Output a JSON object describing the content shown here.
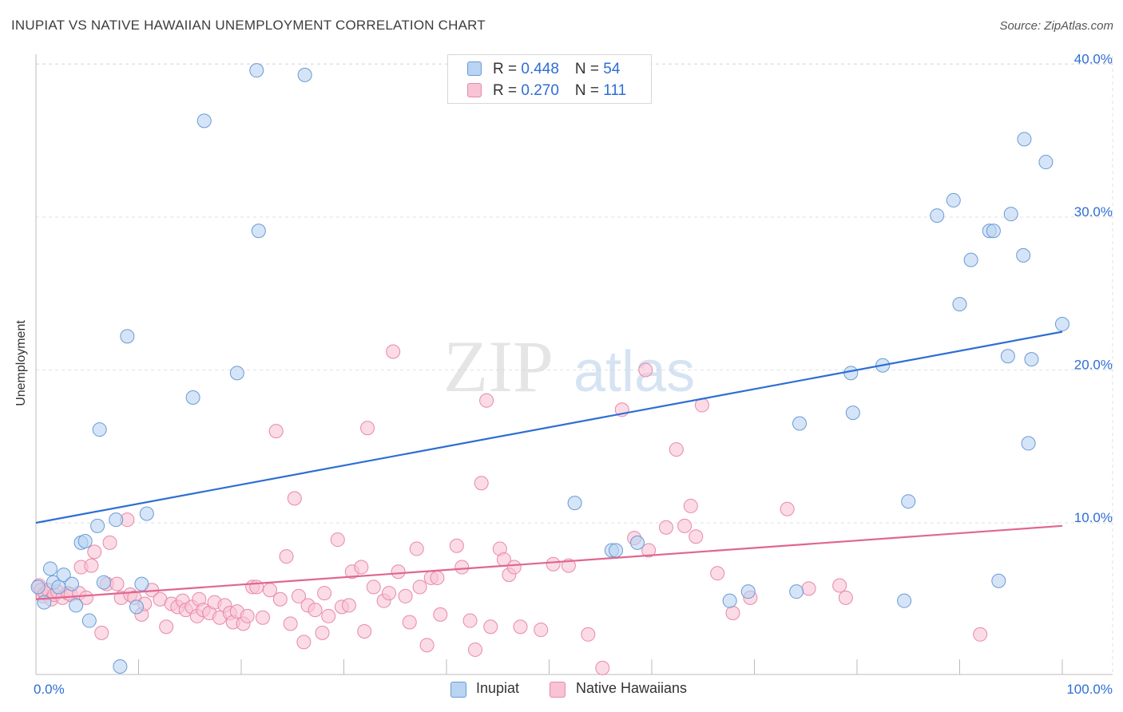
{
  "header": {
    "title": "INUPIAT VS NATIVE HAWAIIAN UNEMPLOYMENT CORRELATION CHART",
    "source": "Source: ZipAtlas.com"
  },
  "watermark": {
    "zip": "ZIP",
    "atlas": "atlas"
  },
  "legend": {
    "rows": [
      {
        "r_label": "R = ",
        "r_value": "0.448",
        "n_label": "N = ",
        "n_value": "54"
      },
      {
        "r_label": "R = ",
        "r_value": "0.270",
        "n_label": "N = ",
        "n_value": "111"
      }
    ],
    "bottom": [
      "Inupiat",
      "Native Hawaiians"
    ]
  },
  "colors": {
    "inupiat_fill": "#b9d3f2",
    "inupiat_stroke": "#6a9ad6",
    "inupiat_line": "#2d6ed4",
    "hawaiian_fill": "#f8c3d4",
    "hawaiian_stroke": "#e889a8",
    "hawaiian_line": "#e0668f",
    "tick_text": "#2d6ed4",
    "grid": "#e2e2e2"
  },
  "chart_data": {
    "type": "scatter",
    "title": "INUPIAT VS NATIVE HAWAIIAN UNEMPLOYMENT CORRELATION CHART",
    "xlabel": "",
    "ylabel": "Unemployment",
    "xlim": [
      0,
      100
    ],
    "ylim": [
      0,
      42
    ],
    "x_tick_labels": [
      "0.0%",
      "100.0%"
    ],
    "y_ticks": [
      10,
      20,
      30,
      40
    ],
    "y_tick_labels": [
      "10.0%",
      "20.0%",
      "30.0%",
      "40.0%"
    ],
    "grid": true,
    "legend_position": "top-center",
    "series": [
      {
        "name": "Inupiat",
        "r": 0.448,
        "n": 54,
        "trend": [
          [
            0,
            10.0
          ],
          [
            100,
            22.5
          ]
        ],
        "points": [
          [
            0.2,
            5.8
          ],
          [
            0.8,
            4.8
          ],
          [
            1.4,
            7.0
          ],
          [
            1.7,
            6.1
          ],
          [
            2.2,
            5.8
          ],
          [
            2.7,
            6.6
          ],
          [
            3.5,
            6.0
          ],
          [
            3.9,
            4.6
          ],
          [
            4.4,
            8.7
          ],
          [
            4.8,
            8.8
          ],
          [
            5.2,
            3.6
          ],
          [
            6.0,
            9.8
          ],
          [
            6.2,
            16.1
          ],
          [
            6.6,
            6.1
          ],
          [
            7.8,
            10.2
          ],
          [
            8.2,
            0.6
          ],
          [
            8.9,
            22.2
          ],
          [
            9.8,
            4.5
          ],
          [
            10.3,
            6.0
          ],
          [
            10.8,
            10.6
          ],
          [
            15.3,
            18.2
          ],
          [
            16.4,
            36.3
          ],
          [
            19.6,
            19.8
          ],
          [
            21.5,
            39.6
          ],
          [
            21.7,
            29.1
          ],
          [
            26.2,
            39.3
          ],
          [
            52.5,
            11.3
          ],
          [
            56.1,
            8.2
          ],
          [
            56.5,
            8.2
          ],
          [
            58.6,
            8.7
          ],
          [
            67.6,
            4.9
          ],
          [
            69.4,
            5.5
          ],
          [
            74.1,
            5.5
          ],
          [
            74.4,
            16.5
          ],
          [
            79.4,
            19.8
          ],
          [
            79.6,
            17.2
          ],
          [
            82.5,
            20.3
          ],
          [
            84.6,
            4.9
          ],
          [
            85.0,
            11.4
          ],
          [
            87.8,
            30.1
          ],
          [
            89.4,
            31.1
          ],
          [
            90.0,
            24.3
          ],
          [
            91.1,
            27.2
          ],
          [
            92.9,
            29.1
          ],
          [
            93.3,
            29.1
          ],
          [
            93.8,
            6.2
          ],
          [
            94.7,
            20.9
          ],
          [
            95.0,
            30.2
          ],
          [
            96.2,
            27.5
          ],
          [
            96.3,
            35.1
          ],
          [
            96.7,
            15.2
          ],
          [
            97.0,
            20.7
          ],
          [
            98.4,
            33.6
          ],
          [
            100.0,
            23.0
          ]
        ]
      },
      {
        "name": "Native Hawaiians",
        "r": 0.27,
        "n": 111,
        "trend": [
          [
            0,
            5.0
          ],
          [
            100,
            9.8
          ]
        ],
        "points": [
          [
            0.3,
            5.9
          ],
          [
            0.5,
            5.6
          ],
          [
            0.7,
            5.2
          ],
          [
            0.9,
            5.4
          ],
          [
            1.2,
            5.6
          ],
          [
            1.5,
            5.0
          ],
          [
            1.8,
            5.3
          ],
          [
            2.1,
            5.5
          ],
          [
            2.6,
            5.1
          ],
          [
            3.1,
            5.4
          ],
          [
            3.4,
            5.3
          ],
          [
            4.2,
            5.4
          ],
          [
            4.4,
            7.1
          ],
          [
            4.9,
            5.1
          ],
          [
            5.4,
            7.2
          ],
          [
            5.7,
            8.1
          ],
          [
            6.4,
            2.8
          ],
          [
            6.9,
            6.0
          ],
          [
            7.2,
            8.7
          ],
          [
            7.9,
            6.0
          ],
          [
            8.3,
            5.1
          ],
          [
            8.9,
            10.2
          ],
          [
            9.2,
            5.3
          ],
          [
            9.6,
            5.1
          ],
          [
            10.3,
            4.0
          ],
          [
            10.6,
            4.7
          ],
          [
            11.3,
            5.6
          ],
          [
            12.1,
            5.0
          ],
          [
            12.7,
            3.2
          ],
          [
            13.2,
            4.7
          ],
          [
            13.8,
            4.5
          ],
          [
            14.3,
            4.9
          ],
          [
            14.6,
            4.3
          ],
          [
            15.2,
            4.5
          ],
          [
            15.7,
            3.9
          ],
          [
            15.9,
            5.0
          ],
          [
            16.3,
            4.3
          ],
          [
            16.9,
            4.1
          ],
          [
            17.4,
            4.8
          ],
          [
            17.9,
            3.8
          ],
          [
            18.4,
            4.6
          ],
          [
            18.9,
            4.1
          ],
          [
            19.2,
            3.5
          ],
          [
            19.6,
            4.2
          ],
          [
            20.2,
            3.4
          ],
          [
            20.6,
            3.9
          ],
          [
            21.1,
            5.8
          ],
          [
            21.5,
            5.8
          ],
          [
            22.1,
            3.8
          ],
          [
            22.8,
            5.6
          ],
          [
            23.4,
            16.0
          ],
          [
            23.8,
            5.0
          ],
          [
            24.4,
            7.8
          ],
          [
            24.8,
            3.4
          ],
          [
            25.2,
            11.6
          ],
          [
            25.6,
            5.2
          ],
          [
            26.1,
            2.2
          ],
          [
            26.5,
            4.6
          ],
          [
            27.2,
            4.3
          ],
          [
            27.9,
            2.8
          ],
          [
            28.1,
            5.4
          ],
          [
            28.5,
            3.9
          ],
          [
            29.4,
            8.9
          ],
          [
            29.8,
            4.5
          ],
          [
            30.5,
            4.6
          ],
          [
            30.8,
            6.8
          ],
          [
            31.7,
            7.1
          ],
          [
            32.0,
            2.9
          ],
          [
            32.3,
            16.2
          ],
          [
            32.9,
            5.8
          ],
          [
            33.9,
            4.9
          ],
          [
            34.4,
            5.4
          ],
          [
            34.8,
            21.2
          ],
          [
            35.3,
            6.8
          ],
          [
            36.0,
            5.2
          ],
          [
            36.4,
            3.5
          ],
          [
            37.1,
            8.3
          ],
          [
            37.4,
            5.8
          ],
          [
            38.1,
            2.0
          ],
          [
            38.5,
            6.4
          ],
          [
            39.1,
            6.4
          ],
          [
            39.4,
            4.0
          ],
          [
            41.0,
            8.5
          ],
          [
            41.5,
            7.1
          ],
          [
            42.3,
            3.6
          ],
          [
            42.8,
            1.7
          ],
          [
            43.4,
            12.6
          ],
          [
            43.9,
            18.0
          ],
          [
            44.3,
            3.2
          ],
          [
            45.2,
            8.3
          ],
          [
            45.6,
            7.6
          ],
          [
            46.1,
            6.6
          ],
          [
            46.6,
            7.1
          ],
          [
            47.2,
            3.2
          ],
          [
            49.2,
            3.0
          ],
          [
            50.4,
            7.3
          ],
          [
            51.9,
            7.2
          ],
          [
            53.8,
            2.7
          ],
          [
            55.2,
            0.5
          ],
          [
            57.1,
            17.4
          ],
          [
            58.3,
            9.0
          ],
          [
            59.4,
            20.0
          ],
          [
            59.7,
            8.2
          ],
          [
            61.4,
            9.7
          ],
          [
            62.4,
            14.8
          ],
          [
            63.2,
            9.8
          ],
          [
            63.8,
            11.1
          ],
          [
            64.3,
            9.1
          ],
          [
            64.9,
            17.7
          ],
          [
            66.4,
            6.7
          ],
          [
            67.9,
            4.1
          ],
          [
            69.6,
            5.1
          ],
          [
            73.2,
            10.9
          ],
          [
            75.3,
            5.7
          ],
          [
            78.3,
            5.9
          ],
          [
            78.9,
            5.1
          ],
          [
            92.0,
            2.7
          ]
        ]
      }
    ]
  }
}
